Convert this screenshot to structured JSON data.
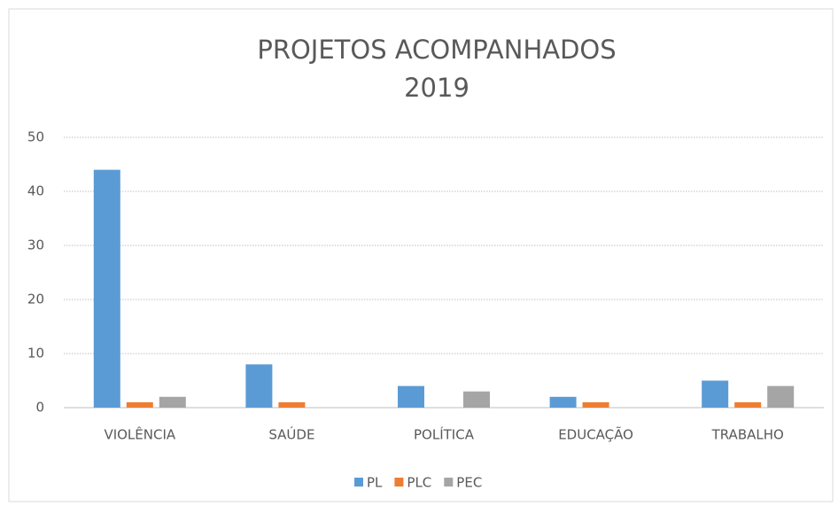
{
  "chart_data": {
    "type": "bar",
    "title": "PROJETOS ACOMPANHADOS",
    "subtitle": "2019",
    "categories": [
      "VIOLÊNCIA",
      "SAÚDE",
      "POLÍTICA",
      "EDUCAÇÃO",
      "TRABALHO"
    ],
    "series": [
      {
        "name": "PL",
        "color": "#5b9bd5",
        "values": [
          44,
          8,
          4,
          2,
          5
        ]
      },
      {
        "name": "PLC",
        "color": "#ed7d31",
        "values": [
          1,
          1,
          0,
          1,
          1
        ]
      },
      {
        "name": "PEC",
        "color": "#a5a5a5",
        "values": [
          2,
          0,
          3,
          0,
          4
        ]
      }
    ],
    "ylim": [
      0,
      50
    ],
    "yticks": [
      0,
      10,
      20,
      30,
      40,
      50
    ],
    "grid": true,
    "legend": "bottom"
  }
}
